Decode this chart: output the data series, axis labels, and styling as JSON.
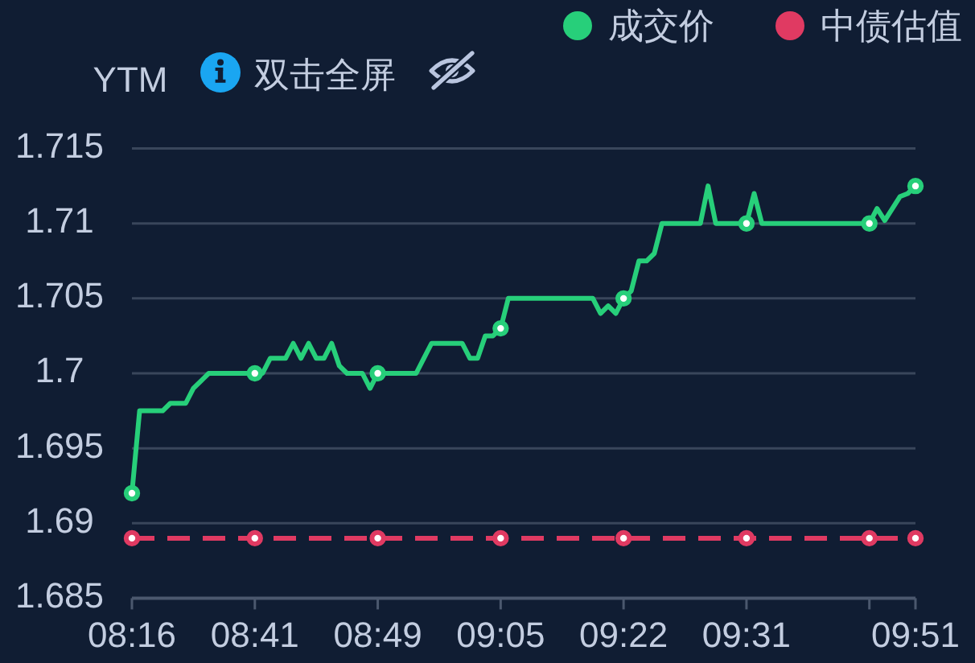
{
  "chart_data": {
    "type": "line",
    "ylabel": "YTM",
    "annotations": [
      "双击全屏"
    ],
    "categories": [
      "08:16",
      null,
      null,
      null,
      null,
      null,
      null,
      null,
      null,
      null,
      null,
      null,
      null,
      null,
      null,
      null,
      "08:41",
      null,
      null,
      null,
      null,
      null,
      null,
      null,
      null,
      null,
      null,
      null,
      null,
      null,
      null,
      null,
      "08:49",
      null,
      null,
      null,
      null,
      null,
      null,
      null,
      null,
      null,
      null,
      null,
      null,
      null,
      null,
      null,
      "09:05",
      null,
      null,
      null,
      null,
      null,
      null,
      null,
      null,
      null,
      null,
      null,
      null,
      null,
      null,
      null,
      "09:22",
      null,
      null,
      null,
      null,
      null,
      null,
      null,
      null,
      null,
      null,
      null,
      null,
      null,
      null,
      null,
      "09:31",
      null,
      null,
      null,
      null,
      null,
      null,
      null,
      null,
      null,
      null,
      null,
      null,
      null,
      null,
      null,
      null,
      null,
      null,
      null,
      null,
      null,
      "09:51"
    ],
    "series": [
      {
        "name": "成交价",
        "color": "#27cf7a",
        "values": [
          1.692,
          1.6975,
          1.6975,
          1.6975,
          1.6975,
          1.698,
          1.698,
          1.698,
          1.699,
          1.6995,
          1.7,
          1.7,
          1.7,
          1.7,
          1.7,
          1.7,
          1.7,
          1.7,
          1.701,
          1.701,
          1.701,
          1.702,
          1.701,
          1.702,
          1.701,
          1.701,
          1.702,
          1.7005,
          1.7,
          1.7,
          1.7,
          1.699,
          1.7,
          1.7,
          1.7,
          1.7,
          1.7,
          1.7,
          1.701,
          1.702,
          1.702,
          1.702,
          1.702,
          1.702,
          1.701,
          1.701,
          1.7025,
          1.7025,
          1.703,
          1.705,
          1.705,
          1.705,
          1.705,
          1.705,
          1.705,
          1.705,
          1.705,
          1.705,
          1.705,
          1.705,
          1.705,
          1.704,
          1.7045,
          1.704,
          1.705,
          1.7055,
          1.7075,
          1.7075,
          1.708,
          1.71,
          1.71,
          1.71,
          1.71,
          1.71,
          1.71,
          1.7125,
          1.71,
          1.71,
          1.71,
          1.71,
          1.71,
          1.712,
          1.71,
          1.71,
          1.71,
          1.71,
          1.71,
          1.71,
          1.71,
          1.71,
          1.71,
          1.71,
          1.71,
          1.71,
          1.71,
          1.71,
          1.71,
          1.711,
          1.7102,
          1.711,
          1.7118,
          1.712,
          1.7125
        ]
      },
      {
        "name": "中债估值",
        "color": "#e03a62",
        "line_style": "dashed",
        "values": [
          1.689,
          1.689,
          1.689,
          1.689,
          1.689,
          1.689,
          1.689,
          1.689,
          1.689,
          1.689,
          1.689,
          1.689,
          1.689,
          1.689,
          1.689,
          1.689,
          1.689,
          1.689,
          1.689,
          1.689,
          1.689,
          1.689,
          1.689,
          1.689,
          1.689,
          1.689,
          1.689,
          1.689,
          1.689,
          1.689,
          1.689,
          1.689,
          1.689,
          1.689,
          1.689,
          1.689,
          1.689,
          1.689,
          1.689,
          1.689,
          1.689,
          1.689,
          1.689,
          1.689,
          1.689,
          1.689,
          1.689,
          1.689,
          1.689,
          1.689,
          1.689,
          1.689,
          1.689,
          1.689,
          1.689,
          1.689,
          1.689,
          1.689,
          1.689,
          1.689,
          1.689,
          1.689,
          1.689,
          1.689,
          1.689,
          1.689,
          1.689,
          1.689,
          1.689,
          1.689,
          1.689,
          1.689,
          1.689,
          1.689,
          1.689,
          1.689,
          1.689,
          1.689,
          1.689,
          1.689,
          1.689,
          1.689,
          1.689,
          1.689,
          1.689,
          1.689,
          1.689,
          1.689,
          1.689,
          1.689,
          1.689,
          1.689,
          1.689,
          1.689,
          1.689,
          1.689,
          1.689,
          1.689,
          1.689,
          1.689,
          1.689,
          1.689,
          1.689
        ]
      },
      {
        "type": "scatter",
        "color": "#27cf7a",
        "marker": "circle",
        "values": [
          1.692,
          null,
          null,
          null,
          null,
          null,
          null,
          null,
          null,
          null,
          null,
          null,
          null,
          null,
          null,
          null,
          1.7,
          null,
          null,
          null,
          null,
          null,
          null,
          null,
          null,
          null,
          null,
          null,
          null,
          null,
          null,
          null,
          1.7,
          null,
          null,
          null,
          null,
          null,
          null,
          null,
          null,
          null,
          null,
          null,
          null,
          null,
          null,
          null,
          1.703,
          null,
          null,
          null,
          null,
          null,
          null,
          null,
          null,
          null,
          null,
          null,
          null,
          null,
          null,
          null,
          1.705,
          null,
          null,
          null,
          null,
          null,
          null,
          null,
          null,
          null,
          null,
          null,
          null,
          null,
          null,
          null,
          1.71,
          null,
          null,
          null,
          null,
          null,
          null,
          null,
          null,
          null,
          null,
          null,
          null,
          null,
          null,
          null,
          1.71,
          null,
          null,
          null,
          null,
          null,
          1.7125
        ]
      },
      {
        "type": "scatter",
        "color": "#e03a62",
        "marker": "circle",
        "values": [
          1.689,
          null,
          null,
          null,
          null,
          null,
          null,
          null,
          null,
          null,
          null,
          null,
          null,
          null,
          null,
          null,
          1.689,
          null,
          null,
          null,
          null,
          null,
          null,
          null,
          null,
          null,
          null,
          null,
          null,
          null,
          null,
          null,
          1.689,
          null,
          null,
          null,
          null,
          null,
          null,
          null,
          null,
          null,
          null,
          null,
          null,
          null,
          null,
          null,
          1.689,
          null,
          null,
          null,
          null,
          null,
          null,
          null,
          null,
          null,
          null,
          null,
          null,
          null,
          null,
          null,
          1.689,
          null,
          null,
          null,
          null,
          null,
          null,
          null,
          null,
          null,
          null,
          null,
          null,
          null,
          null,
          null,
          1.689,
          null,
          null,
          null,
          null,
          null,
          null,
          null,
          null,
          null,
          null,
          null,
          null,
          null,
          null,
          null,
          1.689,
          null,
          null,
          null,
          null,
          null,
          1.689
        ]
      }
    ],
    "ylim": [
      1.685,
      1.715
    ],
    "yticks": [
      1.685,
      1.69,
      1.695,
      1.7,
      1.705,
      1.71,
      1.715
    ],
    "grid": "y",
    "legend": "top right",
    "line_style": "solid"
  }
}
